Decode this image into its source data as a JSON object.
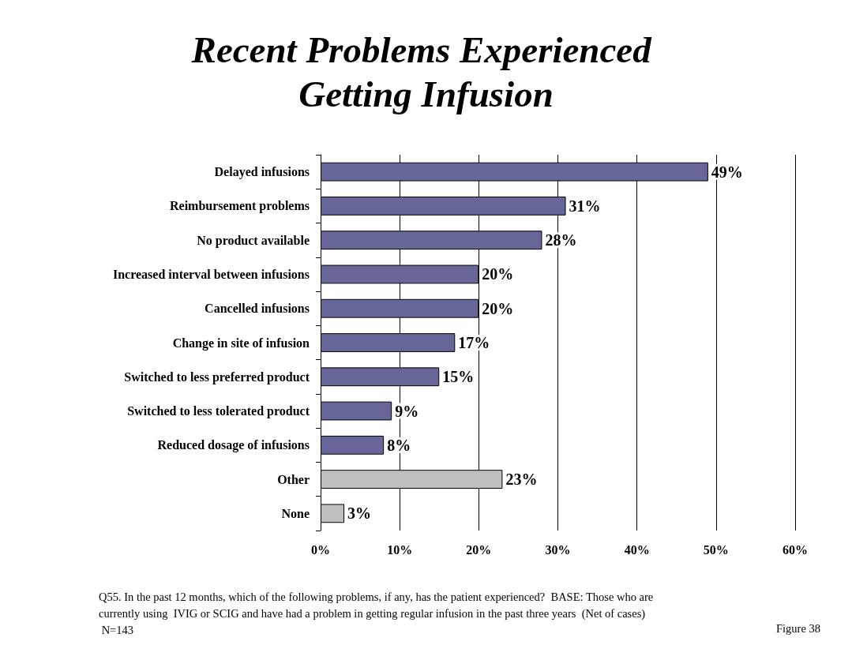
{
  "chart_data": {
    "type": "bar",
    "orientation": "horizontal",
    "title": "Recent Problems Experienced Getting Infusion",
    "categories": [
      "Delayed infusions",
      "Reimbursement problems",
      "No product available",
      "Increased interval between infusions",
      "Cancelled infusions",
      "Change in site of infusion",
      "Switched to less preferred product",
      "Switched to less tolerated product",
      "Reduced dosage of infusions",
      "Other",
      "None"
    ],
    "values": [
      49,
      31,
      28,
      20,
      20,
      17,
      15,
      9,
      8,
      23,
      3
    ],
    "colors": [
      "#666699",
      "#666699",
      "#666699",
      "#666699",
      "#666699",
      "#666699",
      "#666699",
      "#666699",
      "#666699",
      "#c0c0c0",
      "#c0c0c0"
    ],
    "value_labels": [
      "49%",
      "31%",
      "28%",
      "20%",
      "20%",
      "17%",
      "15%",
      "9%",
      "8%",
      "23%",
      "3%"
    ],
    "xlim": [
      0,
      60
    ],
    "xticks": [
      {
        "value": 0,
        "label": "0%"
      },
      {
        "value": 10,
        "label": "10%"
      },
      {
        "value": 20,
        "label": "20%"
      },
      {
        "value": 30,
        "label": "30%"
      },
      {
        "value": 40,
        "label": "40%"
      },
      {
        "value": 50,
        "label": "50%"
      },
      {
        "value": 60,
        "label": "60%"
      }
    ],
    "grid": "x",
    "annotations": [
      "Q55. In the past 12 months, which of the following problems, if any, has the patient experienced?  BASE: Those who are currently using  IVIG or SCIG and have had a problem in getting regular infusion in the past three years  (Net of cases) N=143",
      "Figure 38"
    ]
  }
}
